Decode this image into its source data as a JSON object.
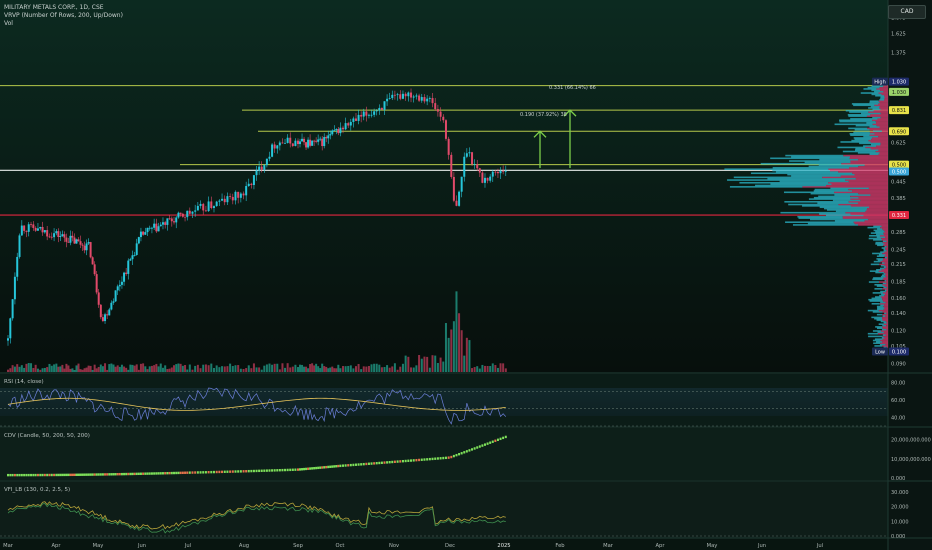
{
  "legend": {
    "symbol_line": "MILITARY METALS CORP., 1D, CSE",
    "vrvp_line": "VRVP (Number Of Rows, 200, Up/Down)",
    "vol_line": "Vol"
  },
  "currency_button": "CAD",
  "price_axis": {
    "ticks": [
      "1.875",
      "1.625",
      "1.375",
      "0.965",
      "0.625",
      "0.445",
      "0.385",
      "0.285",
      "0.245",
      "0.215",
      "0.185",
      "0.160",
      "0.140",
      "0.120",
      "0.105",
      "0.090"
    ],
    "badges": [
      {
        "label": "High",
        "value": "1.030",
        "color": "#1e2b6b"
      },
      {
        "label": "",
        "value": "1.030",
        "color": "#9bd26a"
      },
      {
        "label": "",
        "value": "0.831",
        "color": "#e8e24a"
      },
      {
        "label": "",
        "value": "0.690",
        "color": "#e8e24a"
      },
      {
        "label": "",
        "value": "0.500",
        "color": "#e8e24a"
      },
      {
        "label": "",
        "value": "0.500",
        "color": "#3aa6d8"
      },
      {
        "label": "",
        "value": "0.331",
        "color": "#e0263f"
      },
      {
        "label": "Low",
        "value": "0.100",
        "color": "#1e2b6b"
      }
    ]
  },
  "annotations": {
    "upper_measure": "0.331 (66.14%) 66",
    "lower_measure": "0.190 (37.92%) 38"
  },
  "time_axis": [
    "Mar",
    "Apr",
    "May",
    "Jun",
    "Jul",
    "Aug",
    "Sep",
    "Oct",
    "Nov",
    "Dec",
    "2025",
    "Feb",
    "Mar",
    "Apr",
    "May",
    "Jun",
    "Jul"
  ],
  "rsi": {
    "title": "RSI (14, close)",
    "ticks": [
      "80.00",
      "60.00",
      "40.00"
    ]
  },
  "cdv": {
    "title": "CDV (Candle, 50, 200, 50, 200)",
    "ticks": [
      "20,000,000.000",
      "10,000,000.000",
      "0.000"
    ]
  },
  "vfi": {
    "title": "VFI_LB (130, 0.2, 2.5, 5)",
    "ticks": [
      "30.000",
      "20.000",
      "10.000",
      "0.000"
    ]
  },
  "colors": {
    "up": "#26c6da",
    "down": "#e24a6a",
    "background": "#0a1a14",
    "level_line": "#b5c84a",
    "support_line": "#e0263f"
  },
  "chart_data": {
    "type": "candlestick",
    "title": "MILITARY METALS CORP., 1D, CSE",
    "price_scale": "log",
    "ylim": [
      0.085,
      2.0
    ],
    "horizontal_levels": [
      1.03,
      0.831,
      0.69,
      0.5,
      0.5,
      0.331
    ],
    "date_range": [
      "2024-03",
      "2025-07"
    ],
    "price_path_approx": [
      {
        "x": "Mar",
        "y": 0.11
      },
      {
        "x": "Mar",
        "y": 0.3
      },
      {
        "x": "Apr",
        "y": 0.28
      },
      {
        "x": "May",
        "y": 0.25
      },
      {
        "x": "May",
        "y": 0.13
      },
      {
        "x": "Jun",
        "y": 0.28
      },
      {
        "x": "Jul",
        "y": 0.33
      },
      {
        "x": "Aug",
        "y": 0.4
      },
      {
        "x": "Aug",
        "y": 0.63
      },
      {
        "x": "Sep",
        "y": 0.62
      },
      {
        "x": "Oct",
        "y": 0.8
      },
      {
        "x": "Oct",
        "y": 0.97
      },
      {
        "x": "Nov",
        "y": 0.93
      },
      {
        "x": "Nov",
        "y": 0.75
      },
      {
        "x": "Nov",
        "y": 0.33
      },
      {
        "x": "Dec",
        "y": 0.6
      },
      {
        "x": "Dec",
        "y": 0.45
      },
      {
        "x": "2025",
        "y": 0.5
      }
    ]
  }
}
